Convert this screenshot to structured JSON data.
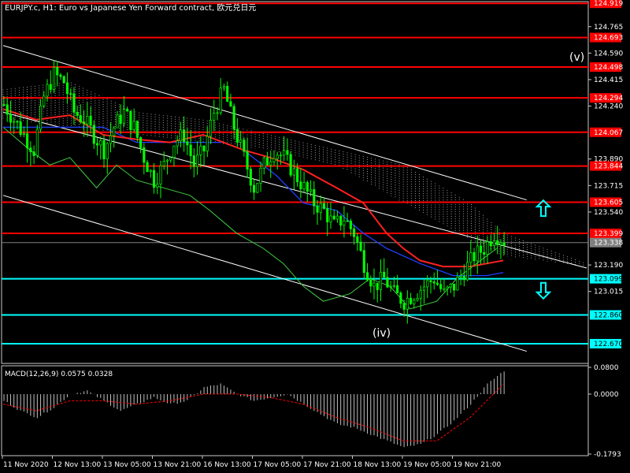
{
  "window": {
    "title": "EURJPY.c, H1:  Euro vs Japanese Yen Forward contract, 欧元兑日元"
  },
  "colors": {
    "background": "#000000",
    "frame": "#c8c8c8",
    "candle": "#00ff00",
    "resistance": "#ff0000",
    "support": "#00ffff",
    "channel": "#ffffff",
    "ma_red": "#ff2020",
    "ma_blue": "#2040ff",
    "lagging": "#40d040",
    "current_price": "#808080",
    "arrow": "#00ffff",
    "macd_hist": "#c0c0c0",
    "macd_signal": "#ff0000"
  },
  "price_axis": {
    "ticks": [
      "124.765",
      "124.590",
      "124.415",
      "124.240",
      "123.890",
      "123.715",
      "123.540",
      "123.190",
      "123.015"
    ]
  },
  "macd_axis": {
    "ticks": [
      "0.0800",
      "0.0000",
      "-0.1793"
    ]
  },
  "time_axis": {
    "labels": [
      "11 Nov 2020",
      "12 Nov 13:00",
      "13 Nov 05:00",
      "13 Nov 21:00",
      "16 Nov 13:00",
      "17 Nov 05:00",
      "17 Nov 21:00",
      "18 Nov 13:00",
      "19 Nov 05:00",
      "19 Nov 21:00"
    ]
  },
  "levels": {
    "resistance": [
      "124.919",
      "124.693",
      "124.498",
      "124.294",
      "124.067",
      "123.844",
      "123.605",
      "123.399"
    ],
    "support": [
      "123.099",
      "122.860",
      "122.670"
    ],
    "current": "123.338"
  },
  "annotations": {
    "wave_iv": "(iv)",
    "wave_v": "(v)"
  },
  "macd": {
    "label": "MACD(12,26,9) 0.0575 0.0328"
  },
  "chart_data": {
    "type": "line",
    "symbol": "EURJPY.c",
    "timeframe": "H1",
    "title": "EURJPY.c, H1:  Euro vs Japanese Yen Forward contract, 欧元兑日元",
    "price_range": [
      122.55,
      124.92
    ],
    "macd_range": [
      -0.1793,
      0.08
    ],
    "price_path": [
      [
        0,
        124.25
      ],
      [
        3,
        124.15
      ],
      [
        6,
        124.05
      ],
      [
        9,
        123.95
      ],
      [
        12,
        124.3
      ],
      [
        15,
        124.45
      ],
      [
        18,
        124.4
      ],
      [
        21,
        124.2
      ],
      [
        24,
        124.15
      ],
      [
        27,
        124.05
      ],
      [
        30,
        123.95
      ],
      [
        33,
        124.1
      ],
      [
        36,
        124.2
      ],
      [
        39,
        124.1
      ],
      [
        42,
        123.9
      ],
      [
        45,
        123.75
      ],
      [
        48,
        123.85
      ],
      [
        51,
        124.0
      ],
      [
        54,
        124.05
      ],
      [
        57,
        123.85
      ],
      [
        60,
        123.95
      ],
      [
        63,
        124.2
      ],
      [
        66,
        124.35
      ],
      [
        69,
        124.1
      ],
      [
        72,
        123.9
      ],
      [
        75,
        123.7
      ],
      [
        78,
        123.85
      ],
      [
        81,
        123.95
      ],
      [
        84,
        123.9
      ],
      [
        87,
        123.8
      ],
      [
        90,
        123.7
      ],
      [
        93,
        123.6
      ],
      [
        96,
        123.55
      ],
      [
        99,
        123.45
      ],
      [
        102,
        123.5
      ],
      [
        105,
        123.4
      ],
      [
        108,
        123.2
      ],
      [
        111,
        123.05
      ],
      [
        114,
        123.1
      ],
      [
        117,
        123.0
      ],
      [
        120,
        122.95
      ],
      [
        123,
        123.0
      ],
      [
        126,
        123.05
      ],
      [
        129,
        123.1
      ],
      [
        132,
        123.0
      ],
      [
        135,
        123.05
      ],
      [
        138,
        123.15
      ],
      [
        141,
        123.25
      ],
      [
        144,
        123.3
      ],
      [
        147,
        123.4
      ],
      [
        150,
        123.35
      ]
    ],
    "ma_red": [
      [
        0,
        124.22
      ],
      [
        10,
        124.15
      ],
      [
        20,
        124.18
      ],
      [
        30,
        124.05
      ],
      [
        40,
        124.02
      ],
      [
        50,
        124.0
      ],
      [
        60,
        124.05
      ],
      [
        66,
        124.0
      ],
      [
        72,
        123.95
      ],
      [
        80,
        123.9
      ],
      [
        90,
        123.82
      ],
      [
        100,
        123.7
      ],
      [
        108,
        123.6
      ],
      [
        115,
        123.4
      ],
      [
        120,
        123.3
      ],
      [
        125,
        123.22
      ],
      [
        132,
        123.18
      ],
      [
        140,
        123.18
      ],
      [
        150,
        123.22
      ]
    ],
    "ma_blue": [
      [
        0,
        124.1
      ],
      [
        14,
        124.1
      ],
      [
        30,
        124.1
      ],
      [
        40,
        124.0
      ],
      [
        50,
        124.0
      ],
      [
        66,
        124.0
      ],
      [
        72,
        123.95
      ],
      [
        82,
        123.78
      ],
      [
        90,
        123.6
      ],
      [
        100,
        123.55
      ],
      [
        108,
        123.4
      ],
      [
        115,
        123.3
      ],
      [
        125,
        123.2
      ],
      [
        135,
        123.12
      ],
      [
        145,
        123.12
      ],
      [
        150,
        123.14
      ]
    ],
    "lagging_line": [
      [
        0,
        124.1
      ],
      [
        8,
        123.95
      ],
      [
        14,
        123.85
      ],
      [
        20,
        123.9
      ],
      [
        28,
        123.7
      ],
      [
        34,
        123.85
      ],
      [
        40,
        123.75
      ],
      [
        48,
        123.7
      ],
      [
        56,
        123.65
      ],
      [
        62,
        123.55
      ],
      [
        70,
        123.4
      ],
      [
        78,
        123.3
      ],
      [
        84,
        123.2
      ],
      [
        90,
        123.05
      ],
      [
        96,
        122.95
      ],
      [
        104,
        123.0
      ],
      [
        110,
        123.1
      ],
      [
        116,
        123.05
      ],
      [
        122,
        122.9
      ],
      [
        130,
        122.95
      ],
      [
        136,
        123.1
      ],
      [
        142,
        123.2
      ],
      [
        148,
        123.3
      ]
    ],
    "channel_lines": [
      {
        "from": [
          0,
          124.64
        ],
        "to": [
          157,
          123.62
        ]
      },
      {
        "from": [
          0,
          123.65
        ],
        "to": [
          157,
          122.62
        ]
      },
      {
        "from": [
          0,
          124.2
        ],
        "to": [
          175,
          123.17
        ]
      }
    ],
    "cloud": {
      "upper": [
        [
          0,
          124.35
        ],
        [
          20,
          124.4
        ],
        [
          40,
          124.2
        ],
        [
          60,
          124.15
        ],
        [
          80,
          124.05
        ],
        [
          100,
          123.95
        ],
        [
          120,
          123.85
        ],
        [
          140,
          123.6
        ],
        [
          150,
          123.4
        ],
        [
          175,
          123.2
        ]
      ],
      "lower": [
        [
          0,
          124.15
        ],
        [
          20,
          124.1
        ],
        [
          40,
          124.05
        ],
        [
          60,
          124.0
        ],
        [
          80,
          123.95
        ],
        [
          100,
          123.85
        ],
        [
          120,
          123.6
        ],
        [
          140,
          123.35
        ],
        [
          150,
          123.25
        ],
        [
          175,
          123.18
        ]
      ]
    },
    "macd_hist": [
      [
        0,
        -0.02
      ],
      [
        5,
        -0.05
      ],
      [
        10,
        -0.07
      ],
      [
        15,
        -0.04
      ],
      [
        20,
        0.0
      ],
      [
        25,
        0.01
      ],
      [
        30,
        -0.02
      ],
      [
        35,
        -0.05
      ],
      [
        40,
        -0.03
      ],
      [
        45,
        -0.01
      ],
      [
        50,
        -0.03
      ],
      [
        55,
        -0.02
      ],
      [
        60,
        0.02
      ],
      [
        65,
        0.03
      ],
      [
        70,
        0.0
      ],
      [
        75,
        -0.02
      ],
      [
        80,
        -0.01
      ],
      [
        85,
        0.0
      ],
      [
        90,
        -0.03
      ],
      [
        95,
        -0.06
      ],
      [
        100,
        -0.09
      ],
      [
        105,
        -0.1
      ],
      [
        110,
        -0.12
      ],
      [
        115,
        -0.14
      ],
      [
        120,
        -0.16
      ],
      [
        125,
        -0.15
      ],
      [
        130,
        -0.12
      ],
      [
        135,
        -0.08
      ],
      [
        140,
        -0.03
      ],
      [
        145,
        0.03
      ],
      [
        150,
        0.07
      ]
    ],
    "macd_signal": [
      [
        0,
        -0.03
      ],
      [
        10,
        -0.05
      ],
      [
        20,
        -0.02
      ],
      [
        30,
        -0.02
      ],
      [
        40,
        -0.03
      ],
      [
        50,
        -0.02
      ],
      [
        60,
        0.0
      ],
      [
        70,
        0.0
      ],
      [
        80,
        -0.01
      ],
      [
        90,
        -0.03
      ],
      [
        100,
        -0.07
      ],
      [
        110,
        -0.1
      ],
      [
        120,
        -0.14
      ],
      [
        130,
        -0.14
      ],
      [
        140,
        -0.07
      ],
      [
        150,
        0.03
      ]
    ],
    "arrows": [
      {
        "direction": "up",
        "x": 162,
        "price": 123.565
      },
      {
        "direction": "down",
        "x": 162,
        "price": 123.02
      }
    ]
  }
}
